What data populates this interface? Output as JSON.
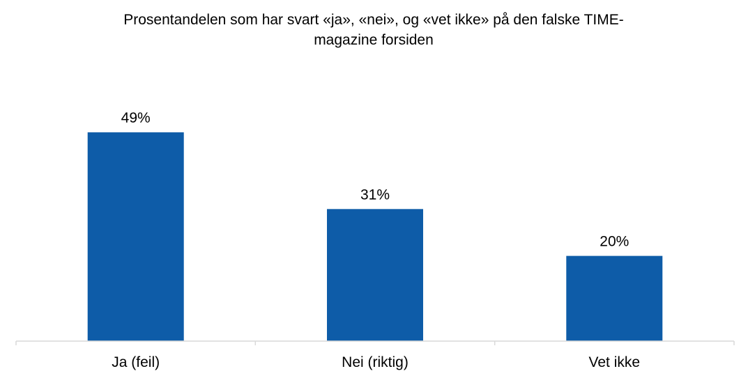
{
  "chart_data": {
    "type": "bar",
    "title_lines": [
      "Prosentandelen som har svart «ja», «nei», og «vet ikke» på den falske TIME-",
      "magazine forsiden"
    ],
    "categories": [
      "Ja (feil)",
      "Nei (riktig)",
      "Vet ikke"
    ],
    "values": [
      49,
      31,
      20
    ],
    "value_labels": [
      "49%",
      "31%",
      "20%"
    ],
    "ylim": [
      0,
      60
    ],
    "xlabel": "",
    "ylabel": "",
    "grid": false,
    "legend": "none",
    "bar_color": "#0e5ca8",
    "axis_color": "#d9d9d9"
  }
}
